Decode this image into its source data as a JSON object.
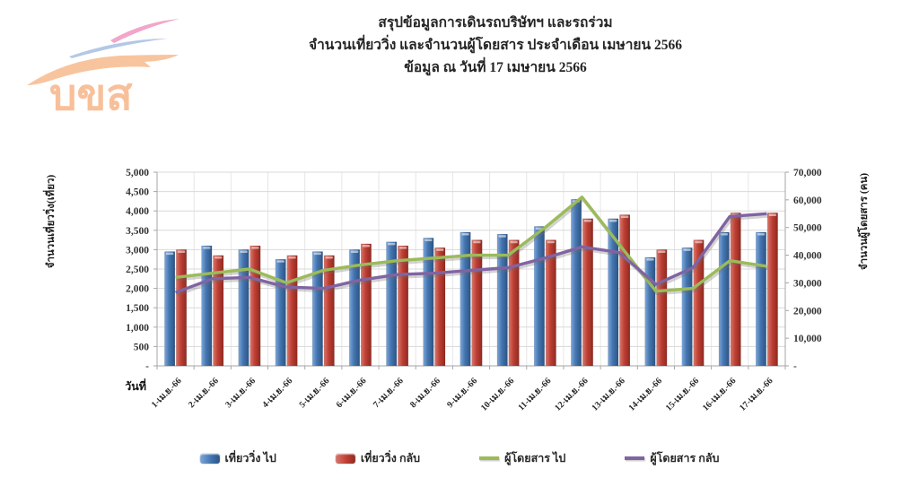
{
  "page": {
    "background": "#FFFFFF"
  },
  "logo": {
    "text": "บขส",
    "colors": {
      "text": "#F8C09A",
      "swoosh_top": "#F2A6C9",
      "swoosh_middle": "#B3C8E6",
      "swoosh_bottom": "#F8C49E"
    }
  },
  "header": {
    "title_line1": "สรุปข้อมูลการเดินรถบริษัทฯ และรถร่วม",
    "title_line2": "จำนวนเที่ยววิ่ง และจำนวนผู้โดยสาร ประจำเดือน เมษายน 2566",
    "title_line3": "ข้อมูล ณ วันที่ 17 เมษายน 2566"
  },
  "chart_data": {
    "type": "bar+line combo (bars on left axis, lines on right axis)",
    "categories": [
      "1-เม.ย.-66",
      "2-เม.ย.-66",
      "3-เม.ย.-66",
      "4-เม.ย.-66",
      "5-เม.ย.-66",
      "6-เม.ย.-66",
      "7-เม.ย.-66",
      "8-เม.ย.-66",
      "9-เม.ย.-66",
      "10-เม.ย.-66",
      "11-เม.ย.-66",
      "12-เม.ย.-66",
      "13-เม.ย.-66",
      "14-เม.ย.-66",
      "15-เม.ย.-66",
      "16-เม.ย.-66",
      "17-เม.ย.-66"
    ],
    "series": [
      {
        "name": "เที่ยววิ่ง ไป",
        "key": "trips-out",
        "type": "bar",
        "axis": "left",
        "color": "#4475B0",
        "color_light": "#7CA6D8",
        "color_dark": "#2C5484",
        "values": [
          2950,
          3100,
          3000,
          2750,
          2950,
          3000,
          3200,
          3300,
          3450,
          3400,
          3600,
          4300,
          3800,
          2800,
          3050,
          3450,
          3450
        ]
      },
      {
        "name": "เที่ยววิ่ง กลับ",
        "key": "trips-return",
        "type": "bar",
        "axis": "left",
        "color": "#BE3F34",
        "color_light": "#D8766C",
        "color_dark": "#8F2920",
        "values": [
          3000,
          2850,
          3100,
          2850,
          2850,
          3150,
          3100,
          3050,
          3250,
          3250,
          3250,
          3800,
          3900,
          3000,
          3250,
          3950,
          3950
        ]
      },
      {
        "name": "ผู้โดยสาร ไป",
        "key": "passengers-out",
        "type": "line",
        "axis": "right",
        "color": "#9BBB59",
        "values": [
          32000,
          33500,
          35000,
          30000,
          34500,
          36500,
          38000,
          39000,
          40000,
          40000,
          50000,
          61000,
          44000,
          27000,
          28000,
          38000,
          36000
        ]
      },
      {
        "name": "ผู้โดยสาร กลับ",
        "key": "passengers-return",
        "type": "line",
        "axis": "right",
        "color": "#8064A2",
        "values": [
          26500,
          31500,
          32000,
          28500,
          28000,
          31000,
          33000,
          33500,
          34500,
          35500,
          39000,
          43000,
          41000,
          29500,
          35500,
          54000,
          55000
        ]
      }
    ],
    "left_axis": {
      "title": "จำนวนเที่ยววิ่ง(เที่ยว)",
      "min": 0,
      "max": 5000,
      "step": 500,
      "zero_label": "-"
    },
    "right_axis": {
      "title": "จำนวนผู้โดยสาร (คน)",
      "min": 0,
      "max": 70000,
      "step": 10000,
      "zero_label": "-"
    },
    "x_axis": {
      "title": "วันที่"
    },
    "legend_position": "bottom",
    "grid": true,
    "gridline_color": "#D9D9D9",
    "axis_line_color": "#A6A6A6"
  }
}
